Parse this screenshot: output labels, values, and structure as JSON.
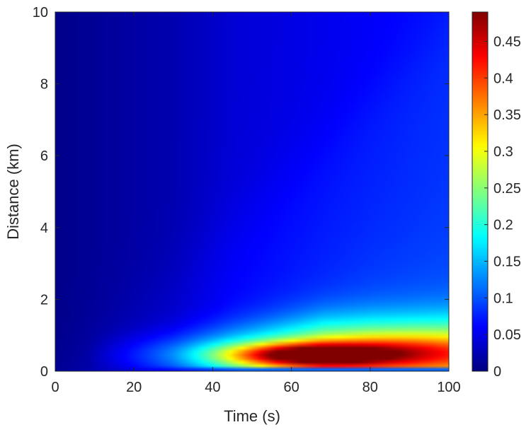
{
  "chart_data": {
    "type": "heatmap",
    "title": "",
    "xlabel": "Time (s)",
    "ylabel": "Distance (km)",
    "xlim": [
      0,
      100
    ],
    "ylim": [
      0,
      10
    ],
    "x_ticks": [
      "0",
      "20",
      "40",
      "60",
      "80",
      "100"
    ],
    "y_ticks": [
      "0",
      "2",
      "4",
      "6",
      "8",
      "10"
    ],
    "colorbar": {
      "colormap": "jet",
      "range": [
        0,
        0.49
      ],
      "ticks": [
        "0",
        "0.05",
        "0.1",
        "0.15",
        "0.2",
        "0.25",
        "0.3",
        "0.35",
        "0.4",
        "0.45"
      ],
      "tick_values": [
        0,
        0.05,
        0.1,
        0.15,
        0.2,
        0.25,
        0.3,
        0.35,
        0.4,
        0.45
      ]
    },
    "peak": {
      "time": 62,
      "distance": 0.4,
      "value": 0.49
    },
    "grid": false
  }
}
